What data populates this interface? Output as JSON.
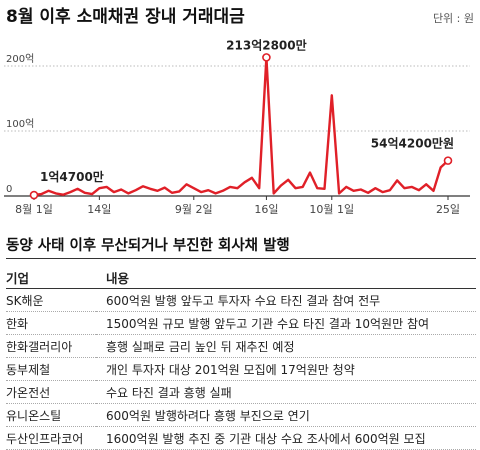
{
  "chart_data": {
    "type": "line",
    "title": "8월 이후 소매채권 장내 거래대금",
    "unit": "단위 : 원",
    "y_ticks": [
      "200억",
      "100억",
      "0"
    ],
    "y_tick_values": [
      200,
      100,
      0
    ],
    "ylim": [
      0,
      200
    ],
    "x_tick_labels": [
      "8월 1일",
      "14일",
      "9월 2일",
      "16일",
      "10월 1일",
      "25일"
    ],
    "x_tick_index": [
      0,
      9,
      22,
      32,
      41,
      57
    ],
    "series": [
      {
        "values": [
          1.47,
          3,
          8,
          4,
          2,
          6,
          11,
          5,
          3,
          12,
          14,
          6,
          10,
          4,
          9,
          15,
          11,
          8,
          13,
          5,
          7,
          18,
          12,
          6,
          9,
          4,
          8,
          14,
          12,
          21,
          28,
          12,
          213.28,
          4,
          16,
          25,
          12,
          14,
          36,
          12,
          11,
          155,
          4,
          14,
          8,
          10,
          5,
          12,
          6,
          9,
          24,
          12,
          14,
          9,
          18,
          8,
          44,
          54.42
        ]
      }
    ],
    "annotations": [
      {
        "label": "1억4700만",
        "index": 0,
        "value": 1.47
      },
      {
        "label": "213억2800만",
        "index": 32,
        "value": 213.28
      },
      {
        "label": "54억4200만원",
        "index": 57,
        "value": 54.42
      }
    ],
    "colors": {
      "line": "#e02028",
      "axis": "#333333",
      "grid": "#bbbbbb"
    }
  },
  "table": {
    "title": "동양 사태 이후 무산되거나 부진한 회사채 발행",
    "headers": [
      "기업",
      "내용"
    ],
    "rows": [
      [
        "SK해운",
        "600억원 발행 앞두고 투자자 수요 타진 결과 참여 전무"
      ],
      [
        "한화",
        "1500억원 규모 발행 앞두고 기관 수요 타진 결과 10억원만 참여"
      ],
      [
        "한화갤러리아",
        "흥행 실패로 금리 높인 뒤 재추진 예정"
      ],
      [
        "동부제철",
        "개인 투자자 대상 201억원 모집에 17억원만 청약"
      ],
      [
        "가온전선",
        "수요 타진 결과 흥행 실패"
      ],
      [
        "유니온스틸",
        "600억원 발행하려다 흥행 부진으로 연기"
      ],
      [
        "두산인프라코어",
        "1600억원 발행 추진 중 기관 대상 수요 조사에서 600억원 모집"
      ]
    ]
  }
}
